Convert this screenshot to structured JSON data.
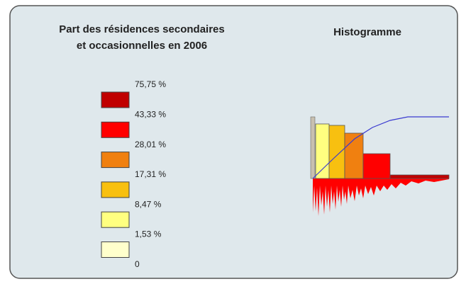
{
  "title": [
    "Part des résidences secondaires",
    "et occasionnelles en 2006"
  ],
  "histogram_title": "Histogramme",
  "legend": {
    "colors": [
      "#c00000",
      "#ff0000",
      "#f08010",
      "#f8c010",
      "#ffff80",
      "#ffffcc"
    ],
    "labels": [
      "75,75 %",
      "43,33 %",
      "28,01 %",
      "17,31 %",
      "8,47 %",
      "1,53 %",
      "0"
    ]
  }
}
